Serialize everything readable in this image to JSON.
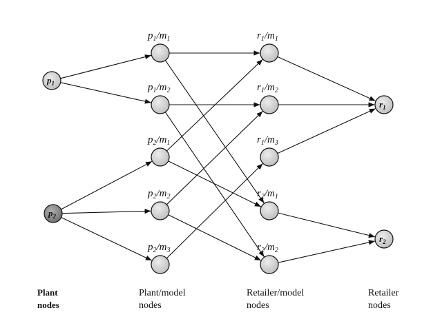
{
  "nodes": {
    "p1": {
      "letter": "p",
      "sub": "1"
    },
    "p2": {
      "letter": "p",
      "sub": "2"
    },
    "p1m1": {
      "a": "p",
      "a_sub": "1",
      "b": "m",
      "b_sub": "1"
    },
    "p1m2": {
      "a": "p",
      "a_sub": "1",
      "b": "m",
      "b_sub": "2"
    },
    "p2m1": {
      "a": "p",
      "a_sub": "2",
      "b": "m",
      "b_sub": "1"
    },
    "p2m2": {
      "a": "p",
      "a_sub": "2",
      "b": "m",
      "b_sub": "2"
    },
    "p2m3": {
      "a": "p",
      "a_sub": "2",
      "b": "m",
      "b_sub": "3"
    },
    "r1m1": {
      "a": "r",
      "a_sub": "1",
      "b": "m",
      "b_sub": "1"
    },
    "r1m2": {
      "a": "r",
      "a_sub": "1",
      "b": "m",
      "b_sub": "2"
    },
    "r1m3": {
      "a": "r",
      "a_sub": "1",
      "b": "m",
      "b_sub": "3"
    },
    "r2m1": {
      "a": "r",
      "a_sub": "2",
      "b": "m",
      "b_sub": "1"
    },
    "r2m2": {
      "a": "r",
      "a_sub": "2",
      "b": "m",
      "b_sub": "2"
    },
    "r1": {
      "letter": "r",
      "sub": "1"
    },
    "r2": {
      "letter": "r",
      "sub": "2"
    }
  },
  "column_labels": {
    "plant": {
      "line1": "Plant",
      "line2": "nodes"
    },
    "plant_model": {
      "line1": "Plant/model",
      "line2": "nodes"
    },
    "retailer_model": {
      "line1": "Retailer/model",
      "line2": "nodes"
    },
    "retailer": {
      "line1": "Retailer",
      "line2": "nodes"
    }
  },
  "colors": {
    "node_fill_light": "#d4d4d4",
    "node_fill_dark": "#8a8a8a",
    "stroke": "#111111"
  }
}
